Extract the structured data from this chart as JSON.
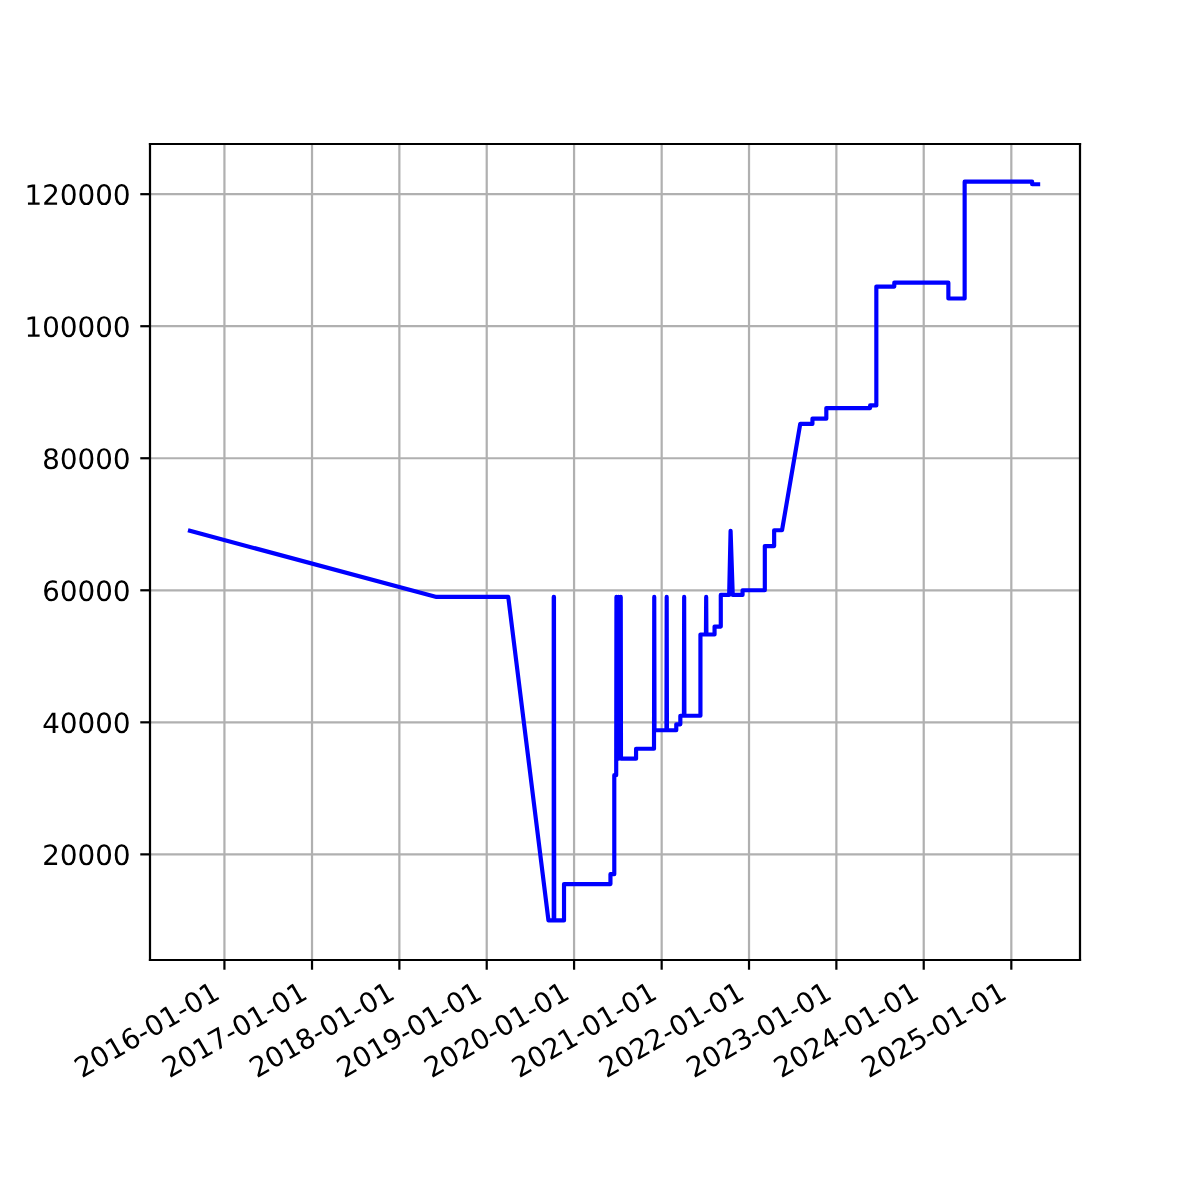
{
  "chart_data": {
    "type": "line",
    "x": [
      "2015-08-10",
      "2018-06-05",
      "2019-04-01",
      "2019-09-16",
      "2019-10-08",
      "2019-10-08",
      "2019-10-09",
      "2019-10-10",
      "2019-11-20",
      "2019-11-20",
      "2020-06-01",
      "2020-06-01",
      "2020-06-17",
      "2020-06-17",
      "2020-06-25",
      "2020-06-26",
      "2020-06-27",
      "2020-07-05",
      "2020-07-06",
      "2020-07-14",
      "2020-07-15",
      "2020-09-16",
      "2020-09-16",
      "2020-11-30",
      "2020-12-01",
      "2020-12-02",
      "2021-01-21",
      "2021-01-22",
      "2021-01-23",
      "2021-03-03",
      "2021-03-03",
      "2021-03-20",
      "2021-03-20",
      "2021-04-04",
      "2021-04-05",
      "2021-04-06",
      "2021-06-12",
      "2021-06-12",
      "2021-07-05",
      "2021-07-06",
      "2021-07-07",
      "2021-08-10",
      "2021-08-10",
      "2021-09-05",
      "2021-09-05",
      "2021-10-10",
      "2021-10-16",
      "2021-10-25",
      "2021-12-05",
      "2021-12-05",
      "2022-03-08",
      "2022-03-08",
      "2022-04-16",
      "2022-04-16",
      "2022-05-19",
      "2022-08-03",
      "2022-09-23",
      "2022-09-23",
      "2022-11-20",
      "2022-11-20",
      "2023-05-22",
      "2023-05-22",
      "2023-06-17",
      "2023-06-17",
      "2023-08-31",
      "2023-08-31",
      "2024-04-13",
      "2024-04-13",
      "2024-06-20",
      "2024-06-20",
      "2025-03-29",
      "2025-03-29",
      "2025-04-23"
    ],
    "series": [
      {
        "color": "#0000ff",
        "values": [
          69000,
          59000,
          59000,
          10000,
          10000,
          59000,
          59000,
          10000,
          10000,
          15500,
          15500,
          17000,
          17000,
          32000,
          32000,
          59000,
          34500,
          59000,
          34500,
          59000,
          34500,
          34500,
          36000,
          36000,
          59000,
          38800,
          38800,
          59000,
          38800,
          38800,
          39700,
          39700,
          41000,
          41000,
          59000,
          41000,
          41000,
          53300,
          53300,
          59000,
          53300,
          53300,
          54500,
          54500,
          59300,
          59300,
          69000,
          59300,
          59300,
          60000,
          60000,
          66700,
          66700,
          69100,
          69100,
          85200,
          85200,
          86000,
          86000,
          87600,
          87600,
          88000,
          88000,
          106000,
          106000,
          106600,
          106600,
          104200,
          104200,
          121900,
          121900,
          121500,
          121500
        ]
      }
    ],
    "xlim": [
      "2015-02-24",
      "2025-10-15"
    ],
    "xticks": [
      "2016-01-01",
      "2017-01-01",
      "2018-01-01",
      "2019-01-01",
      "2020-01-01",
      "2021-01-01",
      "2022-01-01",
      "2023-01-01",
      "2024-01-01",
      "2025-01-01"
    ],
    "ylim": [
      4000,
      127600
    ],
    "yticks": [
      20000,
      40000,
      60000,
      80000,
      100000,
      120000
    ],
    "grid": true
  }
}
